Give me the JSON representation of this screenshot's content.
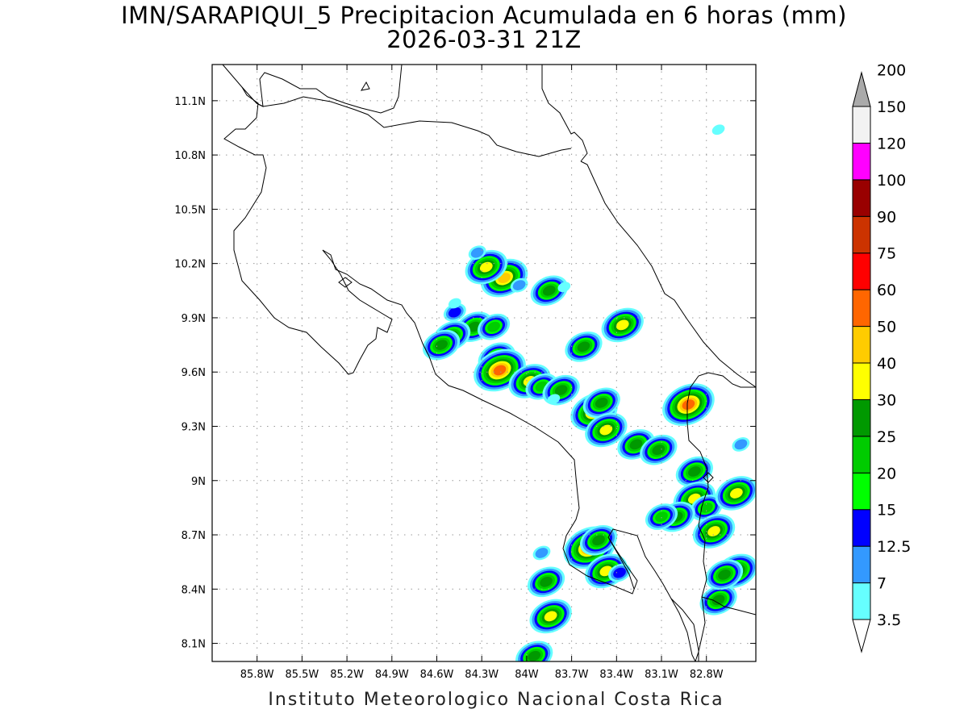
{
  "header": {
    "title_line1": "IMN/SARAPIQUI_5 Precipitacion Acumulada en 6 horas (mm)",
    "title_line2": "2026-03-31 21Z"
  },
  "footer": {
    "credit": "Instituto Meteorologico Nacional Costa Rica"
  },
  "map": {
    "lon_range": [
      -86.1,
      -82.47
    ],
    "lat_range": [
      8.0,
      11.3
    ],
    "x_ticks": [
      {
        "lon": -85.8,
        "label": "85.8W"
      },
      {
        "lon": -85.5,
        "label": "85.5W"
      },
      {
        "lon": -85.2,
        "label": "85.2W"
      },
      {
        "lon": -84.9,
        "label": "84.9W"
      },
      {
        "lon": -84.6,
        "label": "84.6W"
      },
      {
        "lon": -84.3,
        "label": "84.3W"
      },
      {
        "lon": -84.0,
        "label": "84W"
      },
      {
        "lon": -83.7,
        "label": "83.7W"
      },
      {
        "lon": -83.4,
        "label": "83.4W"
      },
      {
        "lon": -83.1,
        "label": "83.1W"
      },
      {
        "lon": -82.8,
        "label": "82.8W"
      }
    ],
    "y_ticks": [
      {
        "lat": 8.1,
        "label": "8.1N"
      },
      {
        "lat": 8.4,
        "label": "8.4N"
      },
      {
        "lat": 8.7,
        "label": "8.7N"
      },
      {
        "lat": 9.0,
        "label": "9N"
      },
      {
        "lat": 9.3,
        "label": "9.3N"
      },
      {
        "lat": 9.6,
        "label": "9.6N"
      },
      {
        "lat": 9.9,
        "label": "9.9N"
      },
      {
        "lat": 10.2,
        "label": "10.2N"
      },
      {
        "lat": 10.5,
        "label": "10.5N"
      },
      {
        "lat": 10.8,
        "label": "10.8N"
      },
      {
        "lat": 11.1,
        "label": "11.1N"
      }
    ],
    "grid": true
  },
  "colorbar": {
    "levels": [
      {
        "label": "3.5",
        "color": "#66ffff"
      },
      {
        "label": "7",
        "color": "#3399ff"
      },
      {
        "label": "12.5",
        "color": "#0000ff"
      },
      {
        "label": "15",
        "color": "#00ff00"
      },
      {
        "label": "20",
        "color": "#00cc00"
      },
      {
        "label": "25",
        "color": "#009900"
      },
      {
        "label": "30",
        "color": "#ffff00"
      },
      {
        "label": "40",
        "color": "#ffcc00"
      },
      {
        "label": "50",
        "color": "#ff6600"
      },
      {
        "label": "60",
        "color": "#ff0000"
      },
      {
        "label": "75",
        "color": "#cc3300"
      },
      {
        "label": "90",
        "color": "#990000"
      },
      {
        "label": "100",
        "color": "#ff00ff"
      },
      {
        "label": "120",
        "color": "#9933cc"
      },
      {
        "label": "150",
        "color": "#f2f2f2"
      },
      {
        "label": "200",
        "color": "#aaaaaa"
      }
    ]
  },
  "precip_cells": [
    {
      "lon": -84.15,
      "lat": 10.12,
      "peak": 40
    },
    {
      "lon": -84.27,
      "lat": 10.18,
      "peak": 30
    },
    {
      "lon": -84.33,
      "lat": 10.26,
      "peak": 7
    },
    {
      "lon": -83.85,
      "lat": 10.05,
      "peak": 25
    },
    {
      "lon": -84.05,
      "lat": 10.08,
      "peak": 7
    },
    {
      "lon": -83.75,
      "lat": 10.07,
      "peak": 3.5
    },
    {
      "lon": -84.48,
      "lat": 9.93,
      "peak": 12.5
    },
    {
      "lon": -84.35,
      "lat": 9.85,
      "peak": 25
    },
    {
      "lon": -84.22,
      "lat": 9.85,
      "peak": 20
    },
    {
      "lon": -84.5,
      "lat": 9.8,
      "peak": 25
    },
    {
      "lon": -84.57,
      "lat": 9.75,
      "peak": 25
    },
    {
      "lon": -84.2,
      "lat": 9.68,
      "peak": 25
    },
    {
      "lon": -84.18,
      "lat": 9.61,
      "peak": 50
    },
    {
      "lon": -83.98,
      "lat": 9.55,
      "peak": 30
    },
    {
      "lon": -83.9,
      "lat": 9.52,
      "peak": 20
    },
    {
      "lon": -83.77,
      "lat": 9.5,
      "peak": 25
    },
    {
      "lon": -83.82,
      "lat": 9.45,
      "peak": 3.5
    },
    {
      "lon": -83.62,
      "lat": 9.74,
      "peak": 25
    },
    {
      "lon": -83.55,
      "lat": 9.38,
      "peak": 40
    },
    {
      "lon": -83.5,
      "lat": 9.43,
      "peak": 25
    },
    {
      "lon": -83.47,
      "lat": 9.28,
      "peak": 30
    },
    {
      "lon": -83.36,
      "lat": 9.86,
      "peak": 30
    },
    {
      "lon": -83.27,
      "lat": 9.2,
      "peak": 25
    },
    {
      "lon": -83.12,
      "lat": 9.17,
      "peak": 25
    },
    {
      "lon": -82.92,
      "lat": 9.42,
      "peak": 50
    },
    {
      "lon": -82.88,
      "lat": 9.05,
      "peak": 25
    },
    {
      "lon": -82.88,
      "lat": 8.9,
      "peak": 30
    },
    {
      "lon": -82.8,
      "lat": 8.85,
      "peak": 20
    },
    {
      "lon": -83.0,
      "lat": 8.8,
      "peak": 25
    },
    {
      "lon": -83.1,
      "lat": 8.8,
      "peak": 20
    },
    {
      "lon": -82.75,
      "lat": 8.72,
      "peak": 30
    },
    {
      "lon": -82.6,
      "lat": 8.93,
      "peak": 30
    },
    {
      "lon": -83.58,
      "lat": 8.63,
      "peak": 50
    },
    {
      "lon": -83.52,
      "lat": 8.67,
      "peak": 25
    },
    {
      "lon": -83.47,
      "lat": 8.5,
      "peak": 30
    },
    {
      "lon": -83.38,
      "lat": 8.49,
      "peak": 12.5
    },
    {
      "lon": -83.87,
      "lat": 8.44,
      "peak": 25
    },
    {
      "lon": -83.9,
      "lat": 8.6,
      "peak": 7
    },
    {
      "lon": -83.84,
      "lat": 8.25,
      "peak": 30
    },
    {
      "lon": -83.95,
      "lat": 8.03,
      "peak": 25
    },
    {
      "lon": -82.72,
      "lat": 8.34,
      "peak": 25
    },
    {
      "lon": -82.6,
      "lat": 8.5,
      "peak": 30
    },
    {
      "lon": -82.68,
      "lat": 8.48,
      "peak": 25
    },
    {
      "lon": -82.57,
      "lat": 9.2,
      "peak": 7
    },
    {
      "lon": -82.72,
      "lat": 10.94,
      "peak": 3.5
    },
    {
      "lon": -84.48,
      "lat": 9.98,
      "peak": 3.5
    }
  ]
}
